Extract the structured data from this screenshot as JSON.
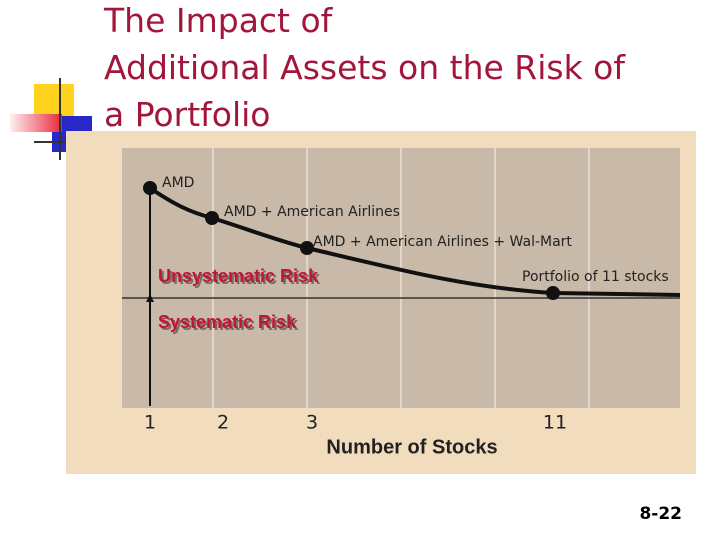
{
  "title": "The Impact of Additional Assets on the Risk of a Portfolio",
  "slide_number": "8-22",
  "chart": {
    "point_labels": [
      "AMD",
      "AMD + American Airlines",
      "AMD + American Airlines + Wal-Mart",
      "Portfolio of 11 stocks"
    ],
    "region_labels": [
      "Unsystematic Risk",
      "Systematic Risk"
    ],
    "x_tick_labels": [
      "1",
      "2",
      "3",
      "11"
    ],
    "x_axis_label": "Number of Stocks"
  }
}
